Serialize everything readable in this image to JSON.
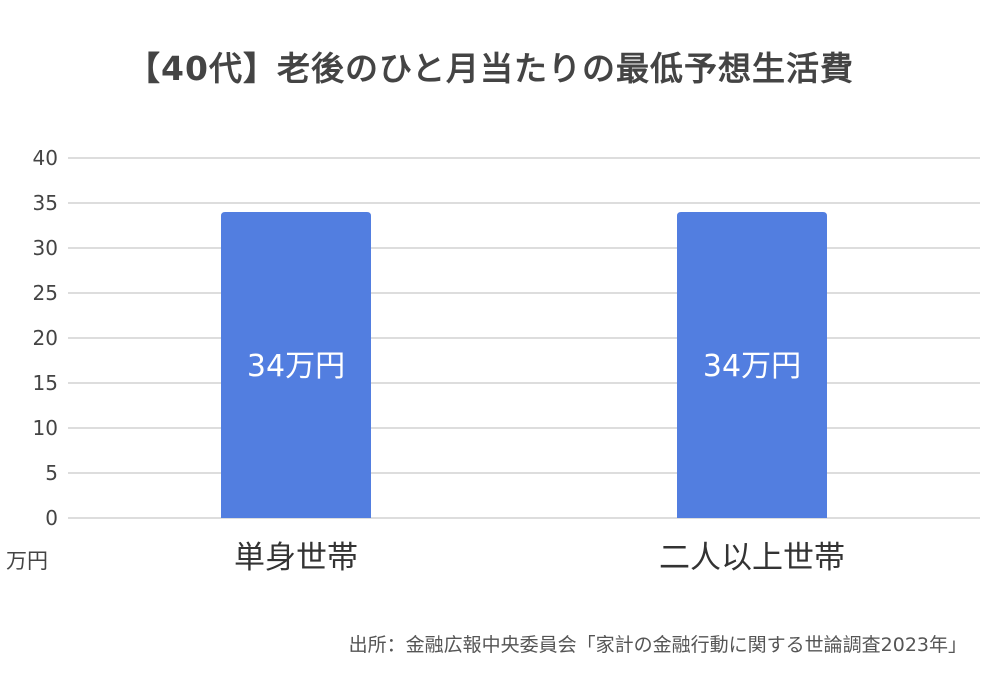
{
  "chart_data": {
    "type": "bar",
    "title": "【40代】老後のひと月当たりの最低予想生活費",
    "categories": [
      "単身世帯",
      "二人以上世帯"
    ],
    "values": [
      34,
      34
    ],
    "data_labels": [
      "34万円",
      "34万円"
    ],
    "ylabel": "万円",
    "ylim": [
      0,
      40
    ],
    "yticks": [
      0,
      5,
      10,
      15,
      20,
      25,
      30,
      35,
      40
    ],
    "grid": true,
    "bar_color": "#527ee0",
    "grid_color": "#dddddd",
    "label_color": "#ffffff"
  },
  "source": "出所：金融広報中央委員会「家計の金融行動に関する世論調査2023年」"
}
